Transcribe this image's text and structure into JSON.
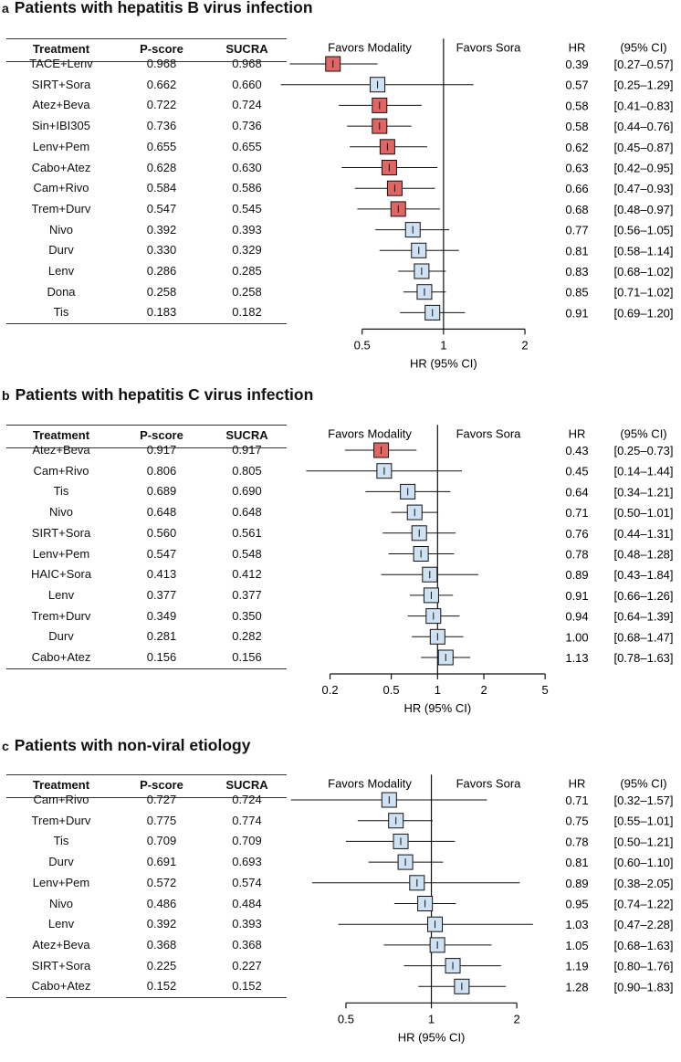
{
  "column_headers": {
    "treatment": "Treatment",
    "pscore": "P-score",
    "sucra": "SUCRA",
    "hr": "HR",
    "ci": "(95% CI)"
  },
  "favors": {
    "left": "Favors Modality",
    "right": "Favors Sora"
  },
  "xlabel": "HR (95% CI)",
  "colors": {
    "significant": "#e06666",
    "nonsignificant": "#cfe2f3",
    "line": "#111111"
  },
  "chart_data": [
    {
      "type": "forest",
      "panel_label": "a",
      "title": "Patients with hepatitis B virus infection",
      "xlabel": "HR (95% CI)",
      "x_scale": "log",
      "xlim": [
        0.4,
        2.3
      ],
      "xticks": [
        0.5,
        1,
        2
      ],
      "xtick_labels": [
        "0.5",
        "1",
        "2"
      ],
      "reference": 1,
      "rows": [
        {
          "treatment": "TACE+Lenv",
          "pscore": "0.968",
          "sucra": "0.968",
          "hr": 0.39,
          "lo": 0.27,
          "hi": 0.57,
          "hr_text": "0.39",
          "ci_text": "[0.27–0.57]",
          "significant": true
        },
        {
          "treatment": "SIRT+Sora",
          "pscore": "0.662",
          "sucra": "0.660",
          "hr": 0.57,
          "lo": 0.25,
          "hi": 1.29,
          "hr_text": "0.57",
          "ci_text": "[0.25–1.29]",
          "significant": false
        },
        {
          "treatment": "Atez+Beva",
          "pscore": "0.722",
          "sucra": "0.724",
          "hr": 0.58,
          "lo": 0.41,
          "hi": 0.83,
          "hr_text": "0.58",
          "ci_text": "[0.41–0.83]",
          "significant": true
        },
        {
          "treatment": "Sin+IBI305",
          "pscore": "0.736",
          "sucra": "0.736",
          "hr": 0.58,
          "lo": 0.44,
          "hi": 0.76,
          "hr_text": "0.58",
          "ci_text": "[0.44–0.76]",
          "significant": true
        },
        {
          "treatment": "Lenv+Pem",
          "pscore": "0.655",
          "sucra": "0.655",
          "hr": 0.62,
          "lo": 0.45,
          "hi": 0.87,
          "hr_text": "0.62",
          "ci_text": "[0.45–0.87]",
          "significant": true
        },
        {
          "treatment": "Cabo+Atez",
          "pscore": "0.628",
          "sucra": "0.630",
          "hr": 0.63,
          "lo": 0.42,
          "hi": 0.95,
          "hr_text": "0.63",
          "ci_text": "[0.42–0.95]",
          "significant": true
        },
        {
          "treatment": "Cam+Rivo",
          "pscore": "0.584",
          "sucra": "0.586",
          "hr": 0.66,
          "lo": 0.47,
          "hi": 0.93,
          "hr_text": "0.66",
          "ci_text": "[0.47–0.93]",
          "significant": true
        },
        {
          "treatment": "Trem+Durv",
          "pscore": "0.547",
          "sucra": "0.545",
          "hr": 0.68,
          "lo": 0.48,
          "hi": 0.97,
          "hr_text": "0.68",
          "ci_text": "[0.48–0.97]",
          "significant": true
        },
        {
          "treatment": "Nivo",
          "pscore": "0.392",
          "sucra": "0.393",
          "hr": 0.77,
          "lo": 0.56,
          "hi": 1.05,
          "hr_text": "0.77",
          "ci_text": "[0.56–1.05]",
          "significant": false
        },
        {
          "treatment": "Durv",
          "pscore": "0.330",
          "sucra": "0.329",
          "hr": 0.81,
          "lo": 0.58,
          "hi": 1.14,
          "hr_text": "0.81",
          "ci_text": "[0.58–1.14]",
          "significant": false
        },
        {
          "treatment": "Lenv",
          "pscore": "0.286",
          "sucra": "0.285",
          "hr": 0.83,
          "lo": 0.68,
          "hi": 1.02,
          "hr_text": "0.83",
          "ci_text": "[0.68–1.02]",
          "significant": false
        },
        {
          "treatment": "Dona",
          "pscore": "0.258",
          "sucra": "0.258",
          "hr": 0.85,
          "lo": 0.71,
          "hi": 1.02,
          "hr_text": "0.85",
          "ci_text": "[0.71–1.02]",
          "significant": false
        },
        {
          "treatment": "Tis",
          "pscore": "0.183",
          "sucra": "0.182",
          "hr": 0.91,
          "lo": 0.69,
          "hi": 1.2,
          "hr_text": "0.91",
          "ci_text": "[0.69–1.20]",
          "significant": false
        }
      ]
    },
    {
      "type": "forest",
      "panel_label": "b",
      "title": "Patients with hepatitis C virus infection",
      "xlabel": "HR (95% CI)",
      "x_scale": "log",
      "xlim": [
        0.13,
        5.2
      ],
      "xticks": [
        0.2,
        0.5,
        1,
        2,
        5
      ],
      "xtick_labels": [
        "0.2",
        "0.5",
        "1",
        "2",
        "5"
      ],
      "reference": 1,
      "rows": [
        {
          "treatment": "Atez+Beva",
          "pscore": "0.917",
          "sucra": "0.917",
          "hr": 0.43,
          "lo": 0.25,
          "hi": 0.73,
          "hr_text": "0.43",
          "ci_text": "[0.25–0.73]",
          "significant": true
        },
        {
          "treatment": "Cam+Rivo",
          "pscore": "0.806",
          "sucra": "0.805",
          "hr": 0.45,
          "lo": 0.14,
          "hi": 1.44,
          "hr_text": "0.45",
          "ci_text": "[0.14–1.44]",
          "significant": false
        },
        {
          "treatment": "Tis",
          "pscore": "0.689",
          "sucra": "0.690",
          "hr": 0.64,
          "lo": 0.34,
          "hi": 1.21,
          "hr_text": "0.64",
          "ci_text": "[0.34–1.21]",
          "significant": false
        },
        {
          "treatment": "Nivo",
          "pscore": "0.648",
          "sucra": "0.648",
          "hr": 0.71,
          "lo": 0.5,
          "hi": 1.01,
          "hr_text": "0.71",
          "ci_text": "[0.50–1.01]",
          "significant": false
        },
        {
          "treatment": "SIRT+Sora",
          "pscore": "0.560",
          "sucra": "0.561",
          "hr": 0.76,
          "lo": 0.44,
          "hi": 1.31,
          "hr_text": "0.76",
          "ci_text": "[0.44–1.31]",
          "significant": false
        },
        {
          "treatment": "Lenv+Pem",
          "pscore": "0.547",
          "sucra": "0.548",
          "hr": 0.78,
          "lo": 0.48,
          "hi": 1.28,
          "hr_text": "0.78",
          "ci_text": "[0.48–1.28]",
          "significant": false
        },
        {
          "treatment": "HAIC+Sora",
          "pscore": "0.413",
          "sucra": "0.412",
          "hr": 0.89,
          "lo": 0.43,
          "hi": 1.84,
          "hr_text": "0.89",
          "ci_text": "[0.43–1.84]",
          "significant": false
        },
        {
          "treatment": "Lenv",
          "pscore": "0.377",
          "sucra": "0.377",
          "hr": 0.91,
          "lo": 0.66,
          "hi": 1.26,
          "hr_text": "0.91",
          "ci_text": "[0.66–1.26]",
          "significant": false
        },
        {
          "treatment": "Trem+Durv",
          "pscore": "0.349",
          "sucra": "0.350",
          "hr": 0.94,
          "lo": 0.64,
          "hi": 1.39,
          "hr_text": "0.94",
          "ci_text": "[0.64–1.39]",
          "significant": false
        },
        {
          "treatment": "Durv",
          "pscore": "0.281",
          "sucra": "0.282",
          "hr": 1.0,
          "lo": 0.68,
          "hi": 1.47,
          "hr_text": "1.00",
          "ci_text": "[0.68–1.47]",
          "significant": false
        },
        {
          "treatment": "Cabo+Atez",
          "pscore": "0.156",
          "sucra": "0.156",
          "hr": 1.13,
          "lo": 0.78,
          "hi": 1.63,
          "hr_text": "1.13",
          "ci_text": "[0.78–1.63]",
          "significant": false
        }
      ]
    },
    {
      "type": "forest",
      "panel_label": "c",
      "title": "Patients with non-viral etiology",
      "xlabel": "HR (95% CI)",
      "x_scale": "log",
      "xlim": [
        0.3,
        2.3
      ],
      "xticks": [
        0.5,
        1,
        2
      ],
      "xtick_labels": [
        "0.5",
        "1",
        "2"
      ],
      "reference": 1,
      "rows": [
        {
          "treatment": "Cam+Rivo",
          "pscore": "0.727",
          "sucra": "0.724",
          "hr": 0.71,
          "lo": 0.32,
          "hi": 1.57,
          "hr_text": "0.71",
          "ci_text": "[0.32–1.57]",
          "significant": false
        },
        {
          "treatment": "Trem+Durv",
          "pscore": "0.775",
          "sucra": "0.774",
          "hr": 0.75,
          "lo": 0.55,
          "hi": 1.01,
          "hr_text": "0.75",
          "ci_text": "[0.55–1.01]",
          "significant": false
        },
        {
          "treatment": "Tis",
          "pscore": "0.709",
          "sucra": "0.709",
          "hr": 0.78,
          "lo": 0.5,
          "hi": 1.21,
          "hr_text": "0.78",
          "ci_text": "[0.50–1.21]",
          "significant": false
        },
        {
          "treatment": "Durv",
          "pscore": "0.691",
          "sucra": "0.693",
          "hr": 0.81,
          "lo": 0.6,
          "hi": 1.1,
          "hr_text": "0.81",
          "ci_text": "[0.60–1.10]",
          "significant": false
        },
        {
          "treatment": "Lenv+Pem",
          "pscore": "0.572",
          "sucra": "0.574",
          "hr": 0.89,
          "lo": 0.38,
          "hi": 2.05,
          "hr_text": "0.89",
          "ci_text": "[0.38–2.05]",
          "significant": false
        },
        {
          "treatment": "Nivo",
          "pscore": "0.486",
          "sucra": "0.484",
          "hr": 0.95,
          "lo": 0.74,
          "hi": 1.22,
          "hr_text": "0.95",
          "ci_text": "[0.74–1.22]",
          "significant": false
        },
        {
          "treatment": "Lenv",
          "pscore": "0.392",
          "sucra": "0.393",
          "hr": 1.03,
          "lo": 0.47,
          "hi": 2.28,
          "hr_text": "1.03",
          "ci_text": "[0.47–2.28]",
          "significant": false
        },
        {
          "treatment": "Atez+Beva",
          "pscore": "0.368",
          "sucra": "0.368",
          "hr": 1.05,
          "lo": 0.68,
          "hi": 1.63,
          "hr_text": "1.05",
          "ci_text": "[0.68–1.63]",
          "significant": false
        },
        {
          "treatment": "SIRT+Sora",
          "pscore": "0.225",
          "sucra": "0.227",
          "hr": 1.19,
          "lo": 0.8,
          "hi": 1.76,
          "hr_text": "1.19",
          "ci_text": "[0.80–1.76]",
          "significant": false
        },
        {
          "treatment": "Cabo+Atez",
          "pscore": "0.152",
          "sucra": "0.152",
          "hr": 1.28,
          "lo": 0.9,
          "hi": 1.83,
          "hr_text": "1.28",
          "ci_text": "[0.90–1.83]",
          "significant": false
        }
      ]
    }
  ]
}
